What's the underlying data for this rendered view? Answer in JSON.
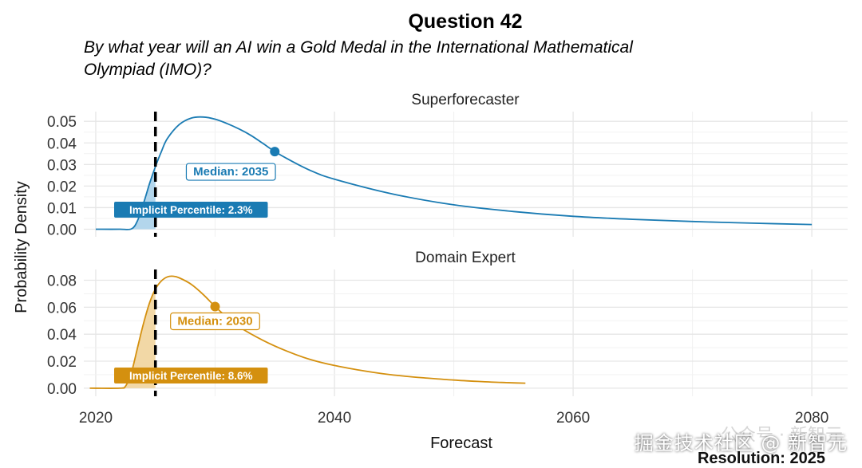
{
  "chart_data": [
    {
      "type": "area",
      "title": "Question 42",
      "subtitle": "By what year will an AI win a Gold Medal in the International Mathematical Olympiad (IMO)?",
      "panel_title": "Superforecaster",
      "xlabel": "Forecast",
      "ylabel": "Probability Density",
      "xlim": [
        2019,
        2083
      ],
      "ylim": [
        -0.0035,
        0.0545
      ],
      "x_ticks": [
        2020,
        2040,
        2060,
        2080
      ],
      "y_ticks": [
        0.0,
        0.01,
        0.02,
        0.03,
        0.04,
        0.05
      ],
      "y_tick_labels": [
        "0.00",
        "0.01",
        "0.02",
        "0.03",
        "0.04",
        "0.05"
      ],
      "color": "#1a7bb3",
      "fill_color": "#b3d6ec",
      "resolution_year": 2025,
      "median": {
        "x": 2035,
        "y": 0.036,
        "label": "Median: 2035"
      },
      "implicit_percentile_label": "Implicit Percentile: 2.3%",
      "series": [
        {
          "x": [
            2020,
            2022,
            2023,
            2023.5,
            2024,
            2024.5,
            2025,
            2025.5,
            2026,
            2027,
            2028,
            2029,
            2030,
            2031,
            2032,
            2033,
            2034,
            2035,
            2036,
            2038,
            2040,
            2045,
            2050,
            2055,
            2060,
            2065,
            2070,
            2075,
            2080
          ],
          "y": [
            0,
            0,
            0.0002,
            0.004,
            0.012,
            0.021,
            0.029,
            0.036,
            0.042,
            0.0485,
            0.0515,
            0.052,
            0.051,
            0.049,
            0.0465,
            0.0435,
            0.0398,
            0.036,
            0.0328,
            0.0272,
            0.0232,
            0.0162,
            0.0113,
            0.0082,
            0.006,
            0.0046,
            0.0036,
            0.0028,
            0.0022
          ]
        }
      ]
    },
    {
      "type": "area",
      "panel_title": "Domain Expert",
      "xlim": [
        2019,
        2083
      ],
      "ylim": [
        -0.006,
        0.088
      ],
      "x_ticks": [
        2020,
        2040,
        2060,
        2080
      ],
      "x_tick_labels": [
        "2020",
        "2040",
        "2060",
        "2080"
      ],
      "y_ticks": [
        0.0,
        0.02,
        0.04,
        0.06,
        0.08
      ],
      "y_tick_labels": [
        "0.00",
        "0.02",
        "0.04",
        "0.06",
        "0.08"
      ],
      "color": "#d4900f",
      "fill_color": "#f2d8a6",
      "resolution_year": 2025,
      "resolution_label": "Resolution: 2025",
      "median": {
        "x": 2030,
        "y": 0.0605,
        "label": "Median: 2030"
      },
      "implicit_percentile_label": "Implicit Percentile: 8.6%",
      "series": [
        {
          "x": [
            2019.5,
            2022,
            2022.5,
            2023,
            2023.5,
            2024,
            2024.5,
            2025,
            2025.5,
            2026,
            2026.5,
            2027,
            2028,
            2029,
            2030,
            2031,
            2032,
            2034,
            2036,
            2038,
            2040,
            2042,
            2044,
            2046,
            2048,
            2050,
            2052,
            2054,
            2056
          ],
          "y": [
            0,
            0,
            0.0015,
            0.012,
            0.03,
            0.048,
            0.063,
            0.0735,
            0.0795,
            0.0825,
            0.083,
            0.0818,
            0.077,
            0.0695,
            0.0605,
            0.0525,
            0.0455,
            0.0355,
            0.0275,
            0.0212,
            0.0168,
            0.0135,
            0.0108,
            0.0088,
            0.0073,
            0.006,
            0.005,
            0.0042,
            0.0037
          ]
        }
      ]
    }
  ],
  "watermark": {
    "lines": [
      "公众号 · 新智元",
      "掘金技术社区 @ 新智元"
    ]
  }
}
